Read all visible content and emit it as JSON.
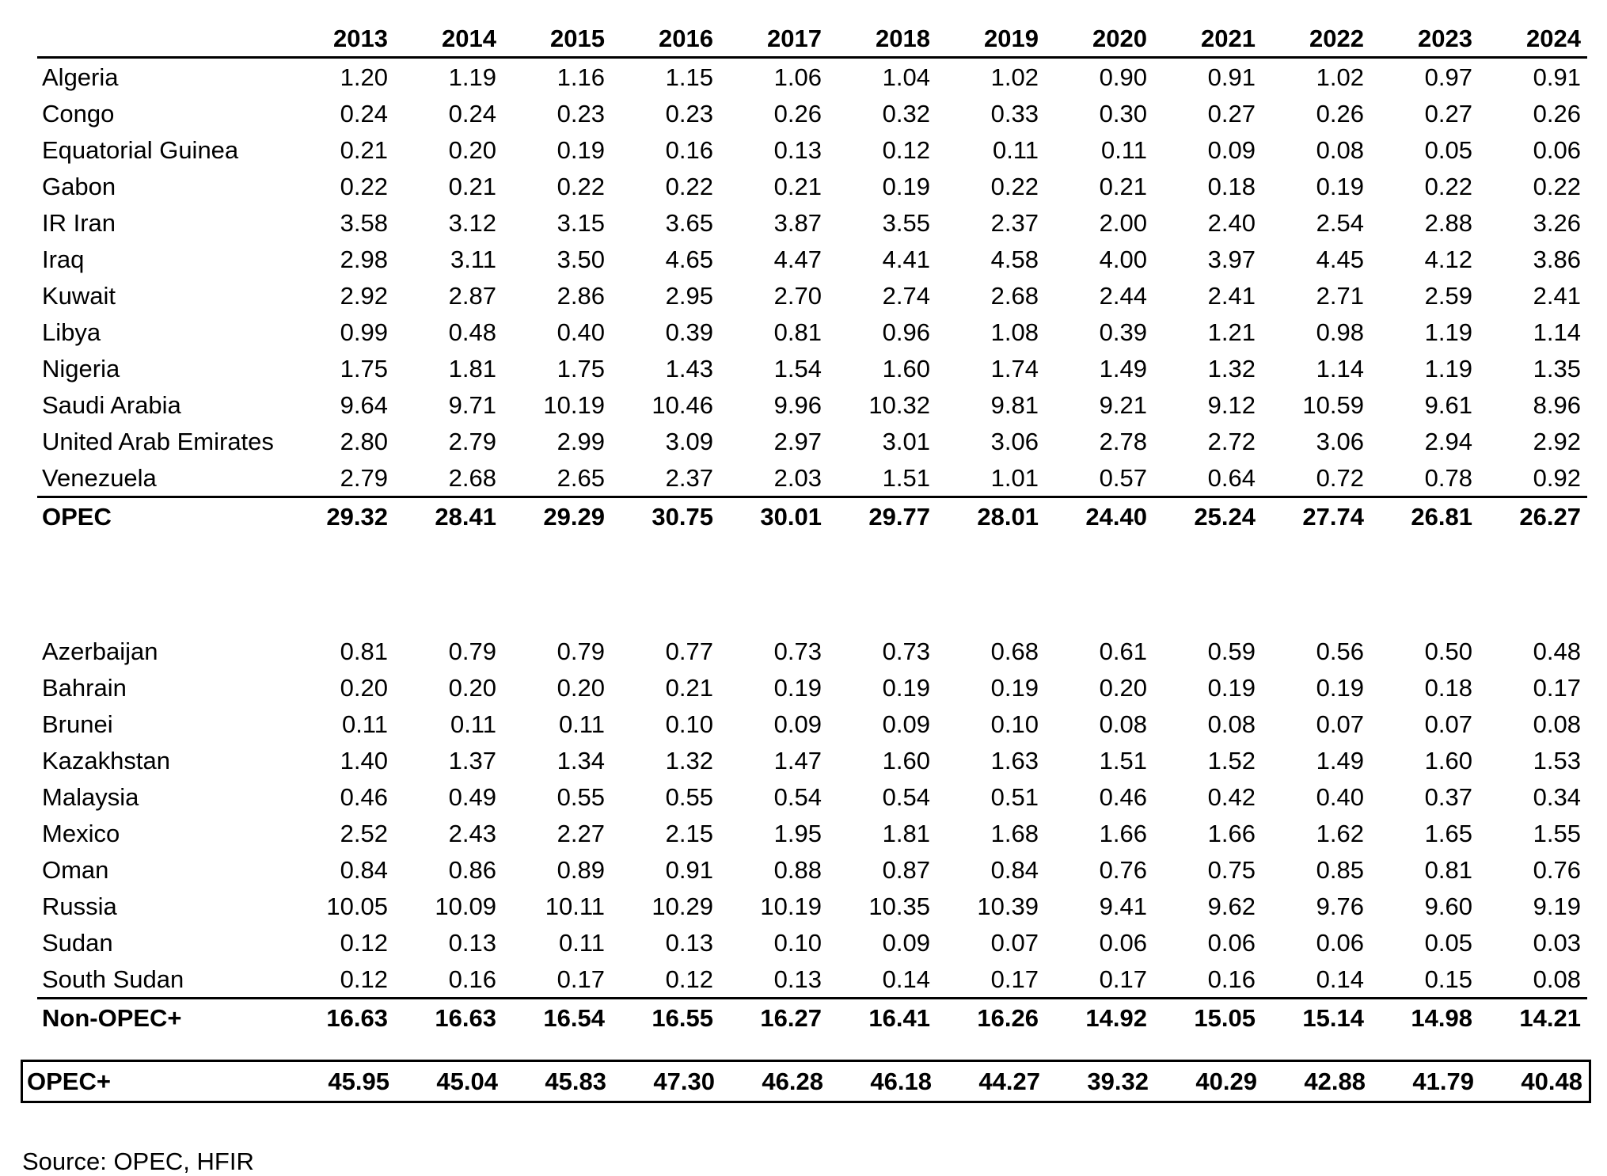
{
  "chart_data": {
    "type": "table",
    "title": "",
    "columns": [
      "2013",
      "2014",
      "2015",
      "2016",
      "2017",
      "2018",
      "2019",
      "2020",
      "2021",
      "2022",
      "2023",
      "2024"
    ],
    "sections": [
      {
        "rows": [
          {
            "name": "Algeria",
            "values": [
              1.2,
              1.19,
              1.16,
              1.15,
              1.06,
              1.04,
              1.02,
              0.9,
              0.91,
              1.02,
              0.97,
              0.91
            ]
          },
          {
            "name": "Congo",
            "values": [
              0.24,
              0.24,
              0.23,
              0.23,
              0.26,
              0.32,
              0.33,
              0.3,
              0.27,
              0.26,
              0.27,
              0.26
            ]
          },
          {
            "name": "Equatorial Guinea",
            "values": [
              0.21,
              0.2,
              0.19,
              0.16,
              0.13,
              0.12,
              0.11,
              0.11,
              0.09,
              0.08,
              0.05,
              0.06
            ]
          },
          {
            "name": "Gabon",
            "values": [
              0.22,
              0.21,
              0.22,
              0.22,
              0.21,
              0.19,
              0.22,
              0.21,
              0.18,
              0.19,
              0.22,
              0.22
            ]
          },
          {
            "name": "IR Iran",
            "values": [
              3.58,
              3.12,
              3.15,
              3.65,
              3.87,
              3.55,
              2.37,
              2.0,
              2.4,
              2.54,
              2.88,
              3.26
            ]
          },
          {
            "name": "Iraq",
            "values": [
              2.98,
              3.11,
              3.5,
              4.65,
              4.47,
              4.41,
              4.58,
              4.0,
              3.97,
              4.45,
              4.12,
              3.86
            ]
          },
          {
            "name": "Kuwait",
            "values": [
              2.92,
              2.87,
              2.86,
              2.95,
              2.7,
              2.74,
              2.68,
              2.44,
              2.41,
              2.71,
              2.59,
              2.41
            ]
          },
          {
            "name": "Libya",
            "values": [
              0.99,
              0.48,
              0.4,
              0.39,
              0.81,
              0.96,
              1.08,
              0.39,
              1.21,
              0.98,
              1.19,
              1.14
            ]
          },
          {
            "name": "Nigeria",
            "values": [
              1.75,
              1.81,
              1.75,
              1.43,
              1.54,
              1.6,
              1.74,
              1.49,
              1.32,
              1.14,
              1.19,
              1.35
            ]
          },
          {
            "name": "Saudi Arabia",
            "values": [
              9.64,
              9.71,
              10.19,
              10.46,
              9.96,
              10.32,
              9.81,
              9.21,
              9.12,
              10.59,
              9.61,
              8.96
            ]
          },
          {
            "name": "United Arab Emirates",
            "values": [
              2.8,
              2.79,
              2.99,
              3.09,
              2.97,
              3.01,
              3.06,
              2.78,
              2.72,
              3.06,
              2.94,
              2.92
            ]
          },
          {
            "name": "Venezuela",
            "values": [
              2.79,
              2.68,
              2.65,
              2.37,
              2.03,
              1.51,
              1.01,
              0.57,
              0.64,
              0.72,
              0.78,
              0.92
            ]
          }
        ],
        "total_row": {
          "name": "OPEC",
          "values": [
            29.32,
            28.41,
            29.29,
            30.75,
            30.01,
            29.77,
            28.01,
            24.4,
            25.24,
            27.74,
            26.81,
            26.27
          ]
        }
      },
      {
        "rows": [
          {
            "name": "Azerbaijan",
            "values": [
              0.81,
              0.79,
              0.79,
              0.77,
              0.73,
              0.73,
              0.68,
              0.61,
              0.59,
              0.56,
              0.5,
              0.48
            ]
          },
          {
            "name": "Bahrain",
            "values": [
              0.2,
              0.2,
              0.2,
              0.21,
              0.19,
              0.19,
              0.19,
              0.2,
              0.19,
              0.19,
              0.18,
              0.17
            ]
          },
          {
            "name": "Brunei",
            "values": [
              0.11,
              0.11,
              0.11,
              0.1,
              0.09,
              0.09,
              0.1,
              0.08,
              0.08,
              0.07,
              0.07,
              0.08
            ]
          },
          {
            "name": "Kazakhstan",
            "values": [
              1.4,
              1.37,
              1.34,
              1.32,
              1.47,
              1.6,
              1.63,
              1.51,
              1.52,
              1.49,
              1.6,
              1.53
            ]
          },
          {
            "name": "Malaysia",
            "values": [
              0.46,
              0.49,
              0.55,
              0.55,
              0.54,
              0.54,
              0.51,
              0.46,
              0.42,
              0.4,
              0.37,
              0.34
            ]
          },
          {
            "name": "Mexico",
            "values": [
              2.52,
              2.43,
              2.27,
              2.15,
              1.95,
              1.81,
              1.68,
              1.66,
              1.66,
              1.62,
              1.65,
              1.55
            ]
          },
          {
            "name": "Oman",
            "values": [
              0.84,
              0.86,
              0.89,
              0.91,
              0.88,
              0.87,
              0.84,
              0.76,
              0.75,
              0.85,
              0.81,
              0.76
            ]
          },
          {
            "name": "Russia",
            "values": [
              10.05,
              10.09,
              10.11,
              10.29,
              10.19,
              10.35,
              10.39,
              9.41,
              9.62,
              9.76,
              9.6,
              9.19
            ]
          },
          {
            "name": "Sudan",
            "values": [
              0.12,
              0.13,
              0.11,
              0.13,
              0.1,
              0.09,
              0.07,
              0.06,
              0.06,
              0.06,
              0.05,
              0.03
            ]
          },
          {
            "name": "South Sudan",
            "values": [
              0.12,
              0.16,
              0.17,
              0.12,
              0.13,
              0.14,
              0.17,
              0.17,
              0.16,
              0.14,
              0.15,
              0.08
            ]
          }
        ],
        "total_row": {
          "name": "Non-OPEC+",
          "values": [
            16.63,
            16.63,
            16.54,
            16.55,
            16.27,
            16.41,
            16.26,
            14.92,
            15.05,
            15.14,
            14.98,
            14.21
          ]
        }
      }
    ],
    "grand_total_row": {
      "name": "OPEC+",
      "values": [
        45.95,
        45.04,
        45.83,
        47.3,
        46.28,
        46.18,
        44.27,
        39.32,
        40.29,
        42.88,
        41.79,
        40.48
      ]
    },
    "source": "Source: OPEC, HFIR"
  }
}
